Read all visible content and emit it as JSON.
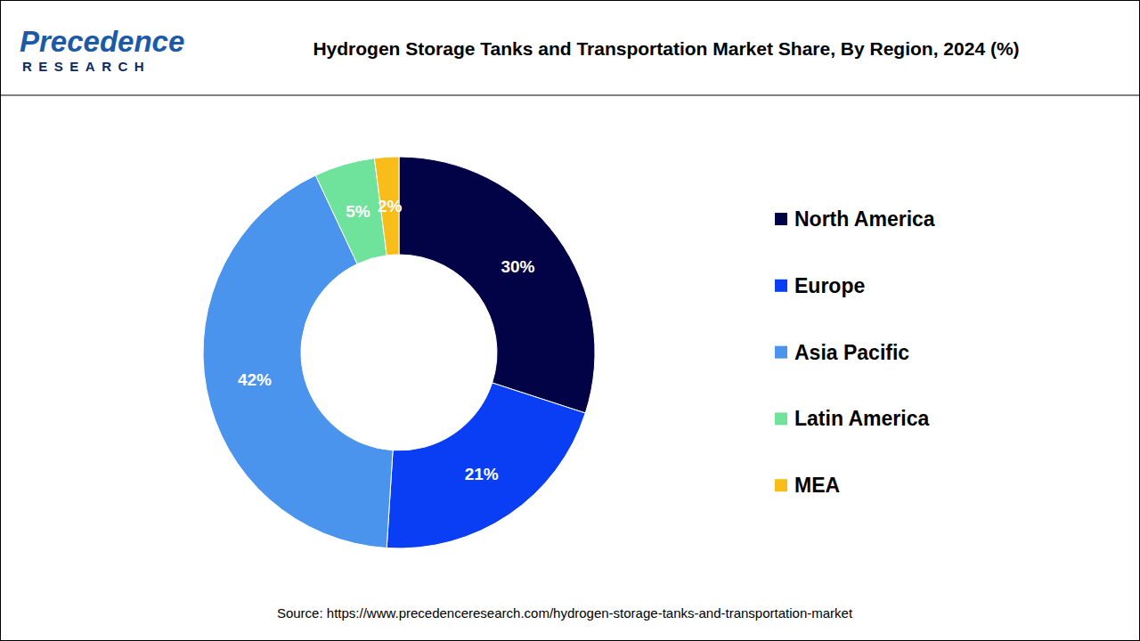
{
  "chart_data": {
    "type": "pie",
    "title": "Hydrogen Storage Tanks and Transportation Market Share, By Region, 2024 (%)",
    "source": "Source: https://www.precedenceresearch.com/hydrogen-storage-tanks-and-transportation-market",
    "categories": [
      "North America",
      "Europe",
      "Asia Pacific",
      "Latin America",
      "MEA"
    ],
    "values": [
      30,
      21,
      42,
      5,
      2
    ],
    "value_labels": [
      "30%",
      "21%",
      "42%",
      "5%",
      "2%"
    ],
    "colors": [
      "#020347",
      "#0a3ef5",
      "#4a94ee",
      "#6fe39b",
      "#f8bd18"
    ],
    "data_labels": true,
    "legend": "right"
  },
  "logo": {
    "name": "Precedence",
    "tagline": "RESEARCH"
  }
}
